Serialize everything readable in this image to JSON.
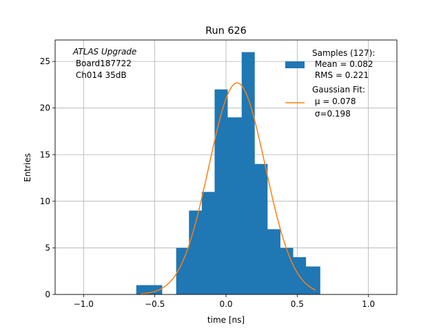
{
  "chart_data": {
    "type": "bar",
    "title": "Run 626",
    "xlabel": "time [ns]",
    "ylabel": "Entries",
    "xlim": [
      -1.2,
      1.2
    ],
    "ylim": [
      0,
      27.3
    ],
    "grid": true,
    "xticks": [
      -1.0,
      -0.5,
      0.0,
      0.5,
      1.0
    ],
    "xtick_labels": [
      "−1.0",
      "−0.5",
      "0.0",
      "0.5",
      "1.0"
    ],
    "yticks": [
      0,
      5,
      10,
      15,
      20,
      25
    ],
    "ytick_labels": [
      "0",
      "5",
      "10",
      "15",
      "20",
      "25"
    ],
    "histogram": {
      "bin_edges": [
        -0.63,
        -0.54,
        -0.45,
        -0.35,
        -0.26,
        -0.17,
        -0.08,
        0.01,
        0.11,
        0.2,
        0.29,
        0.38,
        0.47,
        0.56,
        0.66
      ],
      "counts": [
        1,
        1,
        0,
        5,
        9,
        11,
        22,
        19,
        26,
        14,
        7,
        5,
        4,
        3
      ],
      "color": "#1f77b4"
    },
    "gaussian_fit": {
      "mu": 0.078,
      "sigma": 0.198,
      "amplitude": 22.7,
      "x_range": [
        -0.6,
        0.63
      ],
      "color": "#ff7f0e"
    },
    "legend": {
      "placement": "top-right",
      "entries": [
        {
          "kind": "patch",
          "lines": [
            "Samples (127):",
            " Mean = 0.082",
            " RMS = 0.221"
          ]
        },
        {
          "kind": "line",
          "lines": [
            "Gaussian Fit:",
            " μ = 0.078",
            " σ=0.198"
          ]
        }
      ]
    },
    "annotation": {
      "placement": "top-left",
      "lines": [
        "ATLAS Upgrade",
        " Board187722",
        " Ch014 35dB"
      ]
    }
  }
}
